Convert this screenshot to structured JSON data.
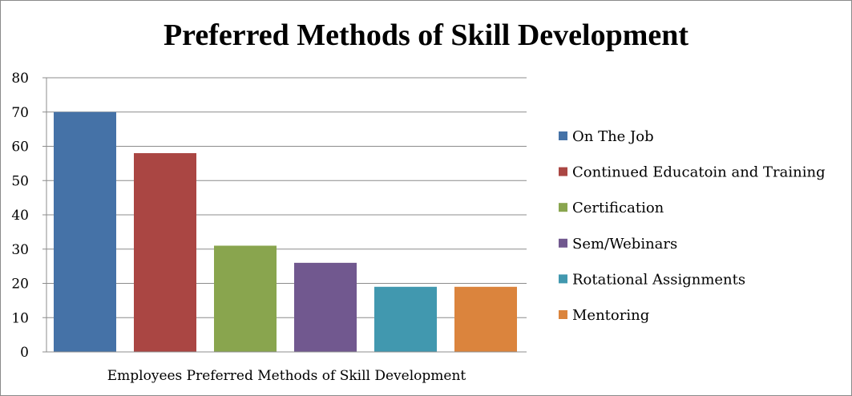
{
  "chart_data": {
    "type": "bar",
    "title": "Preferred Methods of Skill Development",
    "xlabel": "",
    "ylabel": "",
    "category_label": "Employees Preferred Methods of Skill Development",
    "ylim": [
      0,
      80
    ],
    "yticks": [
      0,
      10,
      20,
      30,
      40,
      50,
      60,
      70,
      80
    ],
    "grid": true,
    "legend_position": "right",
    "series": [
      {
        "name": "On The Job",
        "value": 70,
        "color": "#4572A7"
      },
      {
        "name": "Continued Educatoin and Training",
        "value": 58,
        "color": "#AA4643"
      },
      {
        "name": "Certification",
        "value": 31,
        "color": "#89A54E"
      },
      {
        "name": "Sem/Webinars",
        "value": 26,
        "color": "#71588F"
      },
      {
        "name": "Rotational Assignments",
        "value": 19,
        "color": "#4198AF"
      },
      {
        "name": "Mentoring",
        "value": 19,
        "color": "#DB843D"
      }
    ]
  }
}
